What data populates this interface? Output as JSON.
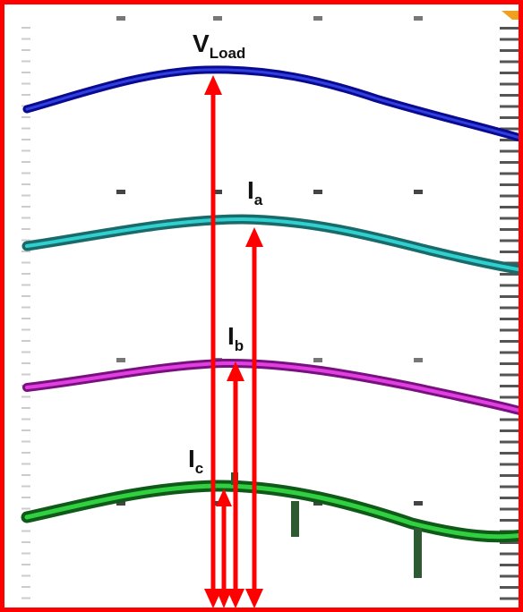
{
  "labels": [
    {
      "main": "V",
      "sub": "Load"
    },
    {
      "main": "I",
      "sub": "a"
    },
    {
      "main": "I",
      "sub": "b"
    },
    {
      "main": "I",
      "sub": "c"
    }
  ]
}
